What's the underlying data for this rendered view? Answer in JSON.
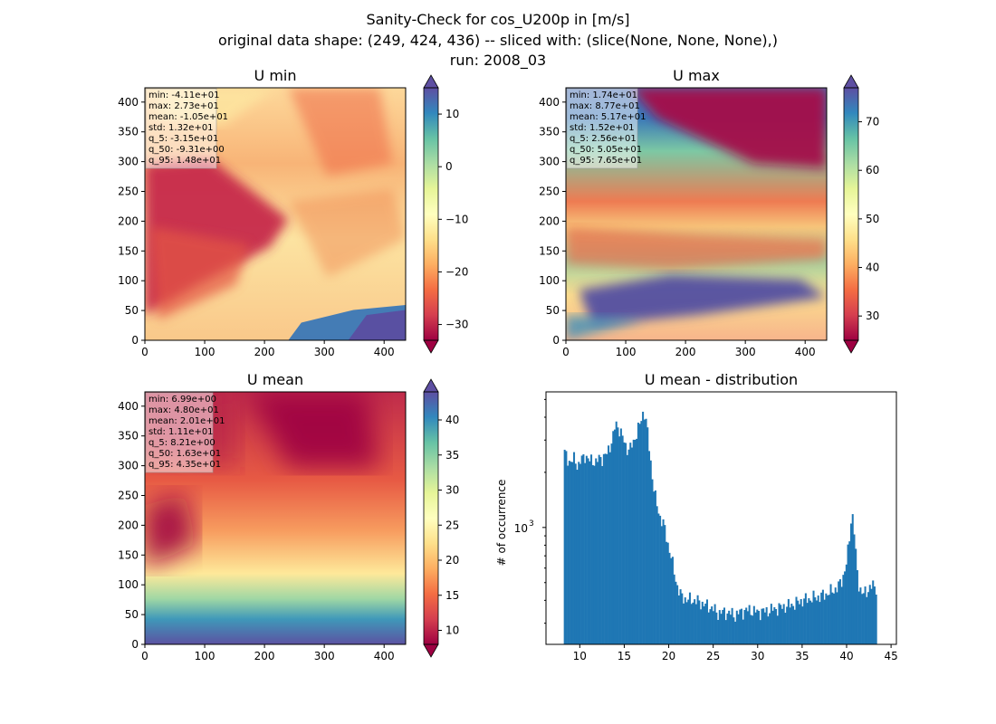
{
  "suptitle": {
    "line1": "Sanity-Check for cos_U200p in [m/s]",
    "line2": "original data shape: (249, 424, 436) -- sliced with: (slice(None, None, None),)",
    "line3": "run: 2008_03"
  },
  "colormap": [
    "#9e0142",
    "#d53e4f",
    "#f46d43",
    "#fdae61",
    "#fee08b",
    "#ffffbf",
    "#e6f598",
    "#abdda4",
    "#66c2a5",
    "#3288bd",
    "#5e4fa2"
  ],
  "chart_data": [
    {
      "type": "heatmap",
      "title": "U min",
      "xlim": [
        0,
        436
      ],
      "ylim": [
        0,
        424
      ],
      "xticks": [
        0,
        100,
        200,
        300,
        400
      ],
      "yticks": [
        0,
        50,
        100,
        150,
        200,
        250,
        300,
        350,
        400
      ],
      "colorbar": {
        "range": [
          -33,
          15
        ],
        "ticks": [
          -30,
          -20,
          -10,
          0,
          10
        ],
        "tick_labels": [
          "−30",
          "−20",
          "−10",
          "0",
          "10"
        ],
        "extend": "both"
      },
      "stats": [
        "min: -4.11e+01",
        "max: 2.73e+01",
        "mean: -1.05e+01",
        "std: 1.32e+01",
        "q_5: -3.15e+01",
        "q_50: -9.31e+00",
        "q_95: 1.48e+01"
      ]
    },
    {
      "type": "heatmap",
      "title": "U max",
      "xlim": [
        0,
        436
      ],
      "ylim": [
        0,
        424
      ],
      "xticks": [
        0,
        100,
        200,
        300,
        400
      ],
      "yticks": [
        0,
        50,
        100,
        150,
        200,
        250,
        300,
        350,
        400
      ],
      "colorbar": {
        "range": [
          25,
          77
        ],
        "ticks": [
          30,
          40,
          50,
          60,
          70
        ],
        "tick_labels": [
          "30",
          "40",
          "50",
          "60",
          "70"
        ],
        "extend": "both"
      },
      "stats": [
        "min: 1.74e+01",
        "max: 8.77e+01",
        "mean: 5.17e+01",
        "std: 1.52e+01",
        "q_5: 2.56e+01",
        "q_50: 5.05e+01",
        "q_95: 7.65e+01"
      ]
    },
    {
      "type": "heatmap",
      "title": "U mean",
      "xlim": [
        0,
        436
      ],
      "ylim": [
        0,
        424
      ],
      "xticks": [
        0,
        100,
        200,
        300,
        400
      ],
      "yticks": [
        0,
        50,
        100,
        150,
        200,
        250,
        300,
        350,
        400
      ],
      "colorbar": {
        "range": [
          8,
          44
        ],
        "ticks": [
          10,
          15,
          20,
          25,
          30,
          35,
          40
        ],
        "tick_labels": [
          "10",
          "15",
          "20",
          "25",
          "30",
          "35",
          "40"
        ],
        "extend": "both"
      },
      "stats": [
        "min: 6.99e+00",
        "max: 4.80e+01",
        "mean: 2.01e+01",
        "std: 1.11e+01",
        "q_5: 8.21e+00",
        "q_50: 1.63e+01",
        "q_95: 4.35e+01"
      ]
    },
    {
      "type": "bar",
      "title": "U mean - distribution",
      "ylabel": "# of occurrence",
      "yscale": "log",
      "xlim": [
        6.2,
        45.6
      ],
      "ylim": [
        230,
        5500
      ],
      "xticks": [
        10,
        15,
        20,
        25,
        30,
        35,
        40,
        45
      ],
      "ytick_label": "10",
      "ytick_exp": "3",
      "bar_color": "#1f77b4",
      "x": [
        8.2,
        8.6,
        9.0,
        9.4,
        9.8,
        10.2,
        10.6,
        11.0,
        11.4,
        11.8,
        12.2,
        12.6,
        13.0,
        13.4,
        13.8,
        14.0,
        14.4,
        14.8,
        15.2,
        15.6,
        16.0,
        16.4,
        16.8,
        17.2,
        17.5,
        17.8,
        18.2,
        18.6,
        19.0,
        19.4,
        19.8,
        20.2,
        20.6,
        21.0,
        21.4,
        22.0,
        23.0,
        24.0,
        25.0,
        25.5,
        26.0,
        27.0,
        27.5,
        28.0,
        29.0,
        30.0,
        31.0,
        32.0,
        33.0,
        34.0,
        35.0,
        36.0,
        37.0,
        38.0,
        39.0,
        39.5,
        40.0,
        40.3,
        40.6,
        40.9,
        41.1,
        41.4,
        41.8,
        42.2,
        42.6,
        43.0,
        43.4
      ],
      "y": [
        2600,
        2400,
        2250,
        2400,
        2150,
        2350,
        2500,
        2300,
        2350,
        2250,
        2400,
        2400,
        2500,
        2800,
        3200,
        3700,
        3500,
        3100,
        2750,
        2650,
        2900,
        3300,
        3700,
        4400,
        3700,
        2700,
        1800,
        1350,
        1150,
        1050,
        850,
        720,
        570,
        470,
        420,
        405,
        400,
        380,
        360,
        340,
        345,
        340,
        330,
        345,
        355,
        345,
        350,
        360,
        370,
        380,
        400,
        410,
        420,
        440,
        470,
        520,
        640,
        860,
        1250,
        900,
        620,
        480,
        430,
        445,
        470,
        480,
        470
      ]
    }
  ]
}
